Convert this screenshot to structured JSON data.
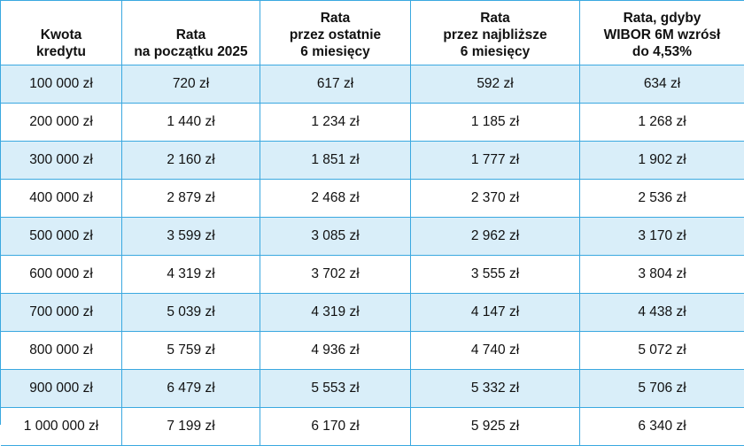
{
  "table": {
    "headers": [
      [
        "Kwota",
        "kredytu"
      ],
      [
        "Rata",
        "na początku 2025"
      ],
      [
        "Rata",
        "przez ostatnie",
        "6 miesięcy"
      ],
      [
        "Rata",
        "przez najbliższe",
        "6 miesięcy"
      ],
      [
        "Rata, gdyby",
        "WIBOR 6M wzrósł",
        "do 4,53%"
      ]
    ],
    "rows": [
      [
        "100 000 zł",
        "720 zł",
        "617 zł",
        "592 zł",
        "634 zł"
      ],
      [
        "200 000 zł",
        "1 440 zł",
        "1 234 zł",
        "1 185 zł",
        "1 268 zł"
      ],
      [
        "300 000 zł",
        "2 160 zł",
        "1 851 zł",
        "1 777 zł",
        "1 902 zł"
      ],
      [
        "400 000 zł",
        "2 879 zł",
        "2 468 zł",
        "2 370 zł",
        "2 536 zł"
      ],
      [
        "500 000 zł",
        "3 599 zł",
        "3 085 zł",
        "2 962 zł",
        "3 170 zł"
      ],
      [
        "600 000 zł",
        "4 319 zł",
        "3 702 zł",
        "3 555 zł",
        "3 804 zł"
      ],
      [
        "700 000 zł",
        "5 039 zł",
        "4 319 zł",
        "4 147 zł",
        "4 438 zł"
      ],
      [
        "800 000 zł",
        "5 759 zł",
        "4 936 zł",
        "4 740 zł",
        "5 072 zł"
      ],
      [
        "900 000 zł",
        "6 479 zł",
        "5 553 zł",
        "5 332 zł",
        "5 706 zł"
      ],
      [
        "1 000 000 zł",
        "7 199 zł",
        "6 170 zł",
        "5 925 zł",
        "6 340 zł"
      ]
    ],
    "colors": {
      "border": "#3aa8e0",
      "shaded_row": "#d9eef9",
      "background": "#ffffff"
    }
  }
}
